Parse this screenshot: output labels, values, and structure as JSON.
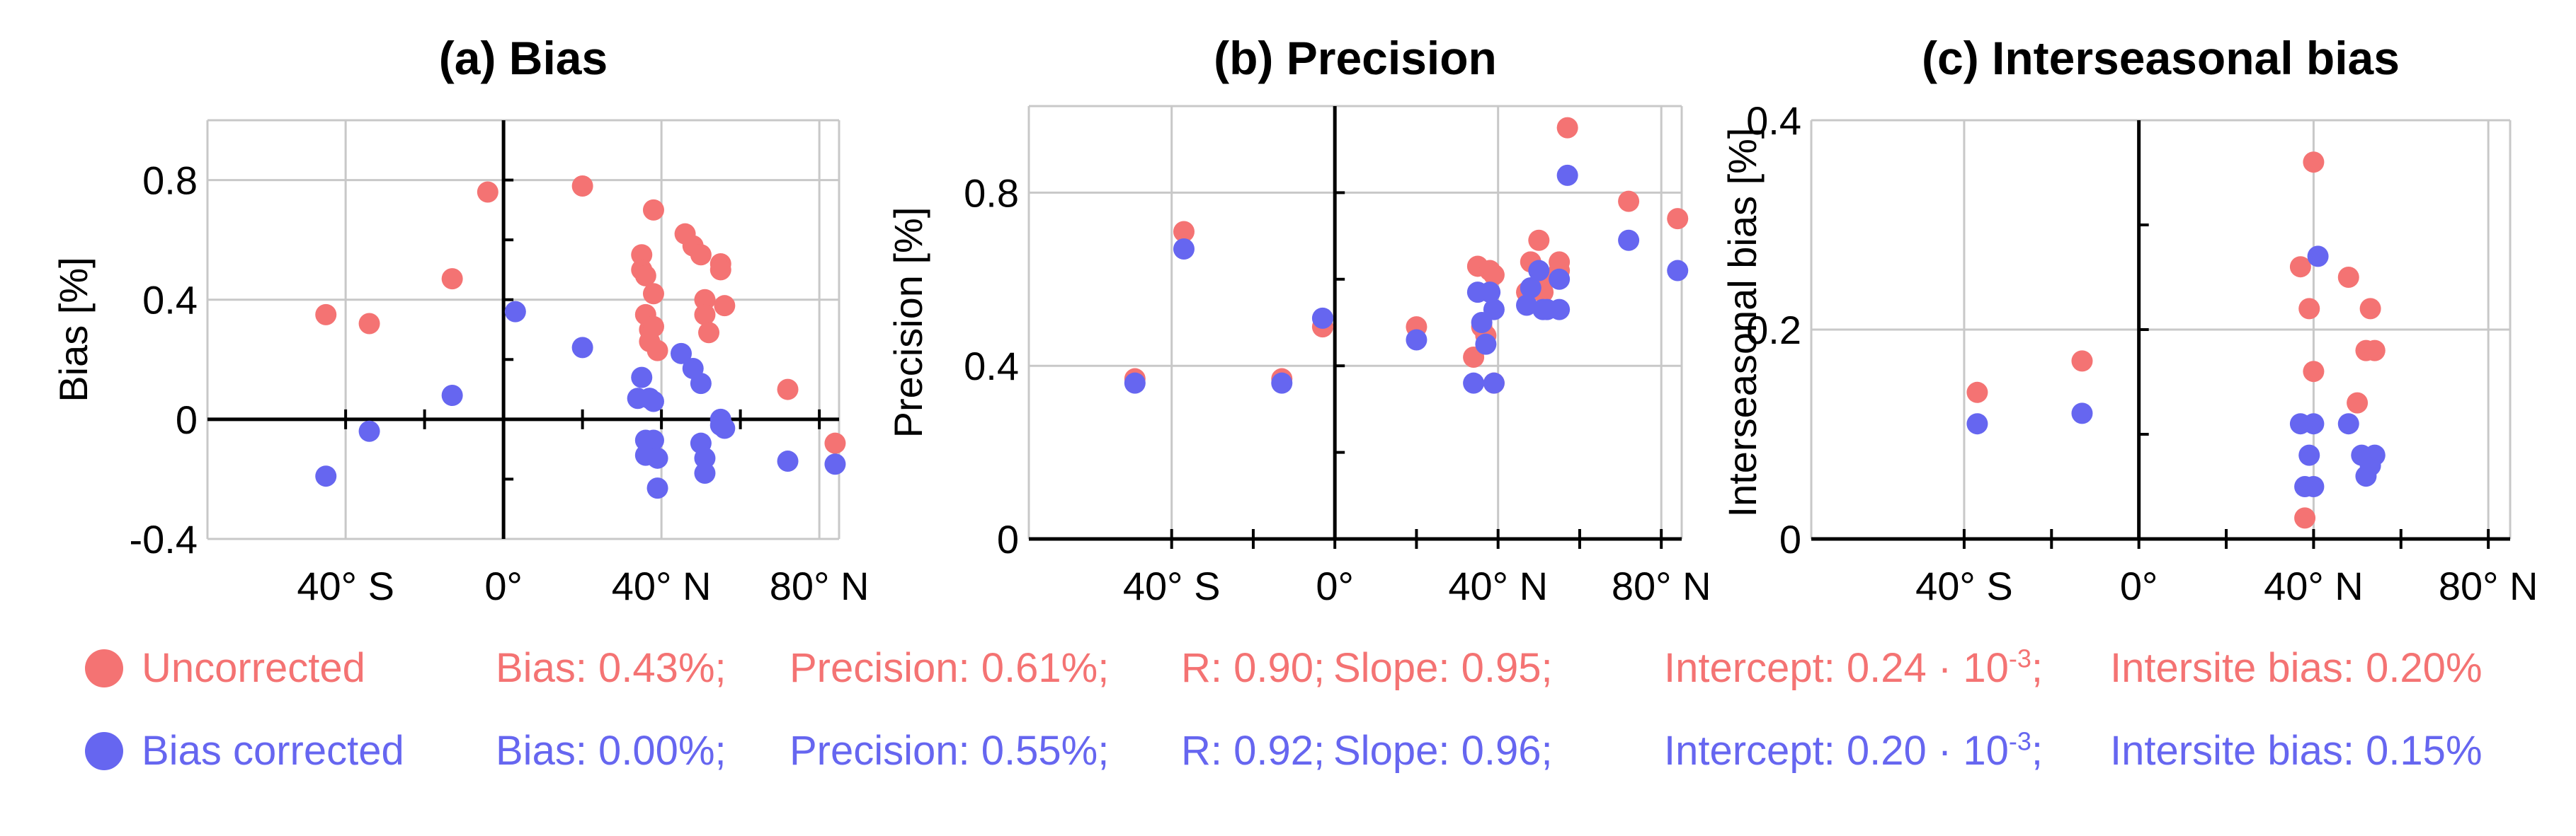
{
  "colors": {
    "uncorrected": "#f47373",
    "corrected": "#6666f0",
    "axis": "#000000",
    "grid": "#c8c8c8"
  },
  "legend": {
    "uncorrected": {
      "label": "Uncorrected",
      "bias": "Bias: 0.43%;",
      "precision": "Precision: 0.61%;",
      "r": "R: 0.90;",
      "slope": "Slope: 0.95;",
      "intercept_prefix": "Intercept: 0.24 · 10",
      "intercept_exp": "-3",
      "intercept_suffix": ";",
      "intersite": "Intersite bias: 0.20%"
    },
    "corrected": {
      "label": "Bias corrected",
      "bias": "Bias: 0.00%;",
      "precision": "Precision: 0.55%;",
      "r": "R: 0.92;",
      "slope": "Slope: 0.96;",
      "intercept_prefix": "Intercept: 0.20 · 10",
      "intercept_exp": "-3",
      "intercept_suffix": ";",
      "intersite": "Intersite bias: 0.15%"
    }
  },
  "chart_data": [
    {
      "type": "scatter",
      "title": "(a) Bias",
      "xlabel": "",
      "ylabel": "Bias [%]",
      "xlim": [
        -75,
        85
      ],
      "ylim": [
        -0.4,
        1.0
      ],
      "xticks": [
        -40,
        0,
        40,
        80
      ],
      "xtick_labels": [
        "40° S",
        "0°",
        "40° N",
        "80° N"
      ],
      "yticks": [
        -0.4,
        0,
        0.4,
        0.8
      ],
      "ytick_labels": [
        "-0.4",
        "0",
        "0.4",
        "0.8"
      ],
      "x_axis_at_zero": true,
      "series": [
        {
          "name": "Uncorrected",
          "points": [
            [
              -45,
              0.35
            ],
            [
              -34,
              0.32
            ],
            [
              -13,
              0.47
            ],
            [
              -4,
              0.76
            ],
            [
              20,
              0.78
            ],
            [
              35,
              0.55
            ],
            [
              35,
              0.5
            ],
            [
              36,
              0.35
            ],
            [
              36,
              0.48
            ],
            [
              37,
              0.3
            ],
            [
              37,
              0.26
            ],
            [
              38,
              0.7
            ],
            [
              38,
              0.42
            ],
            [
              38,
              0.31
            ],
            [
              39,
              0.23
            ],
            [
              46,
              0.62
            ],
            [
              48,
              0.58
            ],
            [
              50,
              0.55
            ],
            [
              51,
              0.4
            ],
            [
              51,
              0.35
            ],
            [
              52,
              0.29
            ],
            [
              55,
              0.52
            ],
            [
              55,
              0.5
            ],
            [
              56,
              0.38
            ],
            [
              72,
              0.1
            ],
            [
              84,
              -0.08
            ]
          ]
        },
        {
          "name": "Bias corrected",
          "points": [
            [
              -45,
              -0.19
            ],
            [
              -34,
              -0.04
            ],
            [
              -13,
              0.08
            ],
            [
              3,
              0.36
            ],
            [
              20,
              0.24
            ],
            [
              34,
              0.07
            ],
            [
              35,
              0.14
            ],
            [
              36,
              -0.07
            ],
            [
              36,
              -0.12
            ],
            [
              37,
              0.07
            ],
            [
              37,
              0.07
            ],
            [
              38,
              0.06
            ],
            [
              38,
              -0.07
            ],
            [
              39,
              -0.13
            ],
            [
              39,
              -0.23
            ],
            [
              45,
              0.22
            ],
            [
              48,
              0.17
            ],
            [
              50,
              0.12
            ],
            [
              50,
              -0.08
            ],
            [
              51,
              -0.13
            ],
            [
              51,
              -0.18
            ],
            [
              55,
              0.0
            ],
            [
              55,
              -0.02
            ],
            [
              56,
              -0.03
            ],
            [
              72,
              -0.14
            ],
            [
              84,
              -0.15
            ]
          ]
        }
      ]
    },
    {
      "type": "scatter",
      "title": "(b) Precision",
      "xlabel": "",
      "ylabel": "Precision [%]",
      "xlim": [
        -75,
        85
      ],
      "ylim": [
        0,
        1.0
      ],
      "xticks": [
        -40,
        0,
        40,
        80
      ],
      "xtick_labels": [
        "40° S",
        "0°",
        "40° N",
        "80° N"
      ],
      "yticks": [
        0,
        0.4,
        0.8
      ],
      "ytick_labels": [
        "0",
        "0.4",
        "0.8"
      ],
      "x_axis_at_zero": true,
      "series": [
        {
          "name": "Uncorrected",
          "points": [
            [
              -49,
              0.37
            ],
            [
              -37,
              0.71
            ],
            [
              -13,
              0.37
            ],
            [
              -3,
              0.49
            ],
            [
              20,
              0.49
            ],
            [
              34,
              0.42
            ],
            [
              35,
              0.63
            ],
            [
              36,
              0.49
            ],
            [
              37,
              0.47
            ],
            [
              38,
              0.62
            ],
            [
              39,
              0.61
            ],
            [
              39,
              0.36
            ],
            [
              47,
              0.57
            ],
            [
              48,
              0.64
            ],
            [
              50,
              0.69
            ],
            [
              51,
              0.57
            ],
            [
              51,
              0.6
            ],
            [
              55,
              0.62
            ],
            [
              55,
              0.64
            ],
            [
              57,
              0.95
            ],
            [
              72,
              0.78
            ],
            [
              84,
              0.74
            ]
          ]
        },
        {
          "name": "Bias corrected",
          "points": [
            [
              -49,
              0.36
            ],
            [
              -37,
              0.67
            ],
            [
              -13,
              0.36
            ],
            [
              -3,
              0.51
            ],
            [
              20,
              0.46
            ],
            [
              34,
              0.36
            ],
            [
              35,
              0.57
            ],
            [
              36,
              0.5
            ],
            [
              37,
              0.45
            ],
            [
              38,
              0.57
            ],
            [
              39,
              0.53
            ],
            [
              39,
              0.36
            ],
            [
              47,
              0.54
            ],
            [
              48,
              0.58
            ],
            [
              50,
              0.62
            ],
            [
              51,
              0.53
            ],
            [
              52,
              0.53
            ],
            [
              55,
              0.6
            ],
            [
              55,
              0.53
            ],
            [
              57,
              0.84
            ],
            [
              72,
              0.69
            ],
            [
              84,
              0.62
            ]
          ]
        }
      ]
    },
    {
      "type": "scatter",
      "title": "(c) Interseasonal bias",
      "xlabel": "",
      "ylabel": "Interseasonal bias [%]",
      "xlim": [
        -75,
        85
      ],
      "ylim": [
        0,
        0.4
      ],
      "xticks": [
        -40,
        0,
        40,
        80
      ],
      "xtick_labels": [
        "40° S",
        "0°",
        "40° N",
        "80° N"
      ],
      "yticks": [
        0,
        0.2,
        0.4
      ],
      "ytick_labels": [
        "0",
        "0.2",
        "0.4"
      ],
      "x_axis_at_zero": true,
      "series": [
        {
          "name": "Uncorrected",
          "points": [
            [
              -37,
              0.14
            ],
            [
              -13,
              0.17
            ],
            [
              37,
              0.26
            ],
            [
              38,
              0.02
            ],
            [
              39,
              0.22
            ],
            [
              40,
              0.36
            ],
            [
              40,
              0.16
            ],
            [
              48,
              0.25
            ],
            [
              50,
              0.13
            ],
            [
              52,
              0.18
            ],
            [
              53,
              0.22
            ],
            [
              54,
              0.18
            ]
          ]
        },
        {
          "name": "Bias corrected",
          "points": [
            [
              -37,
              0.11
            ],
            [
              -13,
              0.12
            ],
            [
              37,
              0.11
            ],
            [
              38,
              0.05
            ],
            [
              39,
              0.08
            ],
            [
              40,
              0.05
            ],
            [
              40,
              0.11
            ],
            [
              41,
              0.27
            ],
            [
              48,
              0.11
            ],
            [
              51,
              0.08
            ],
            [
              52,
              0.06
            ],
            [
              53,
              0.07
            ],
            [
              54,
              0.08
            ]
          ]
        }
      ]
    }
  ]
}
